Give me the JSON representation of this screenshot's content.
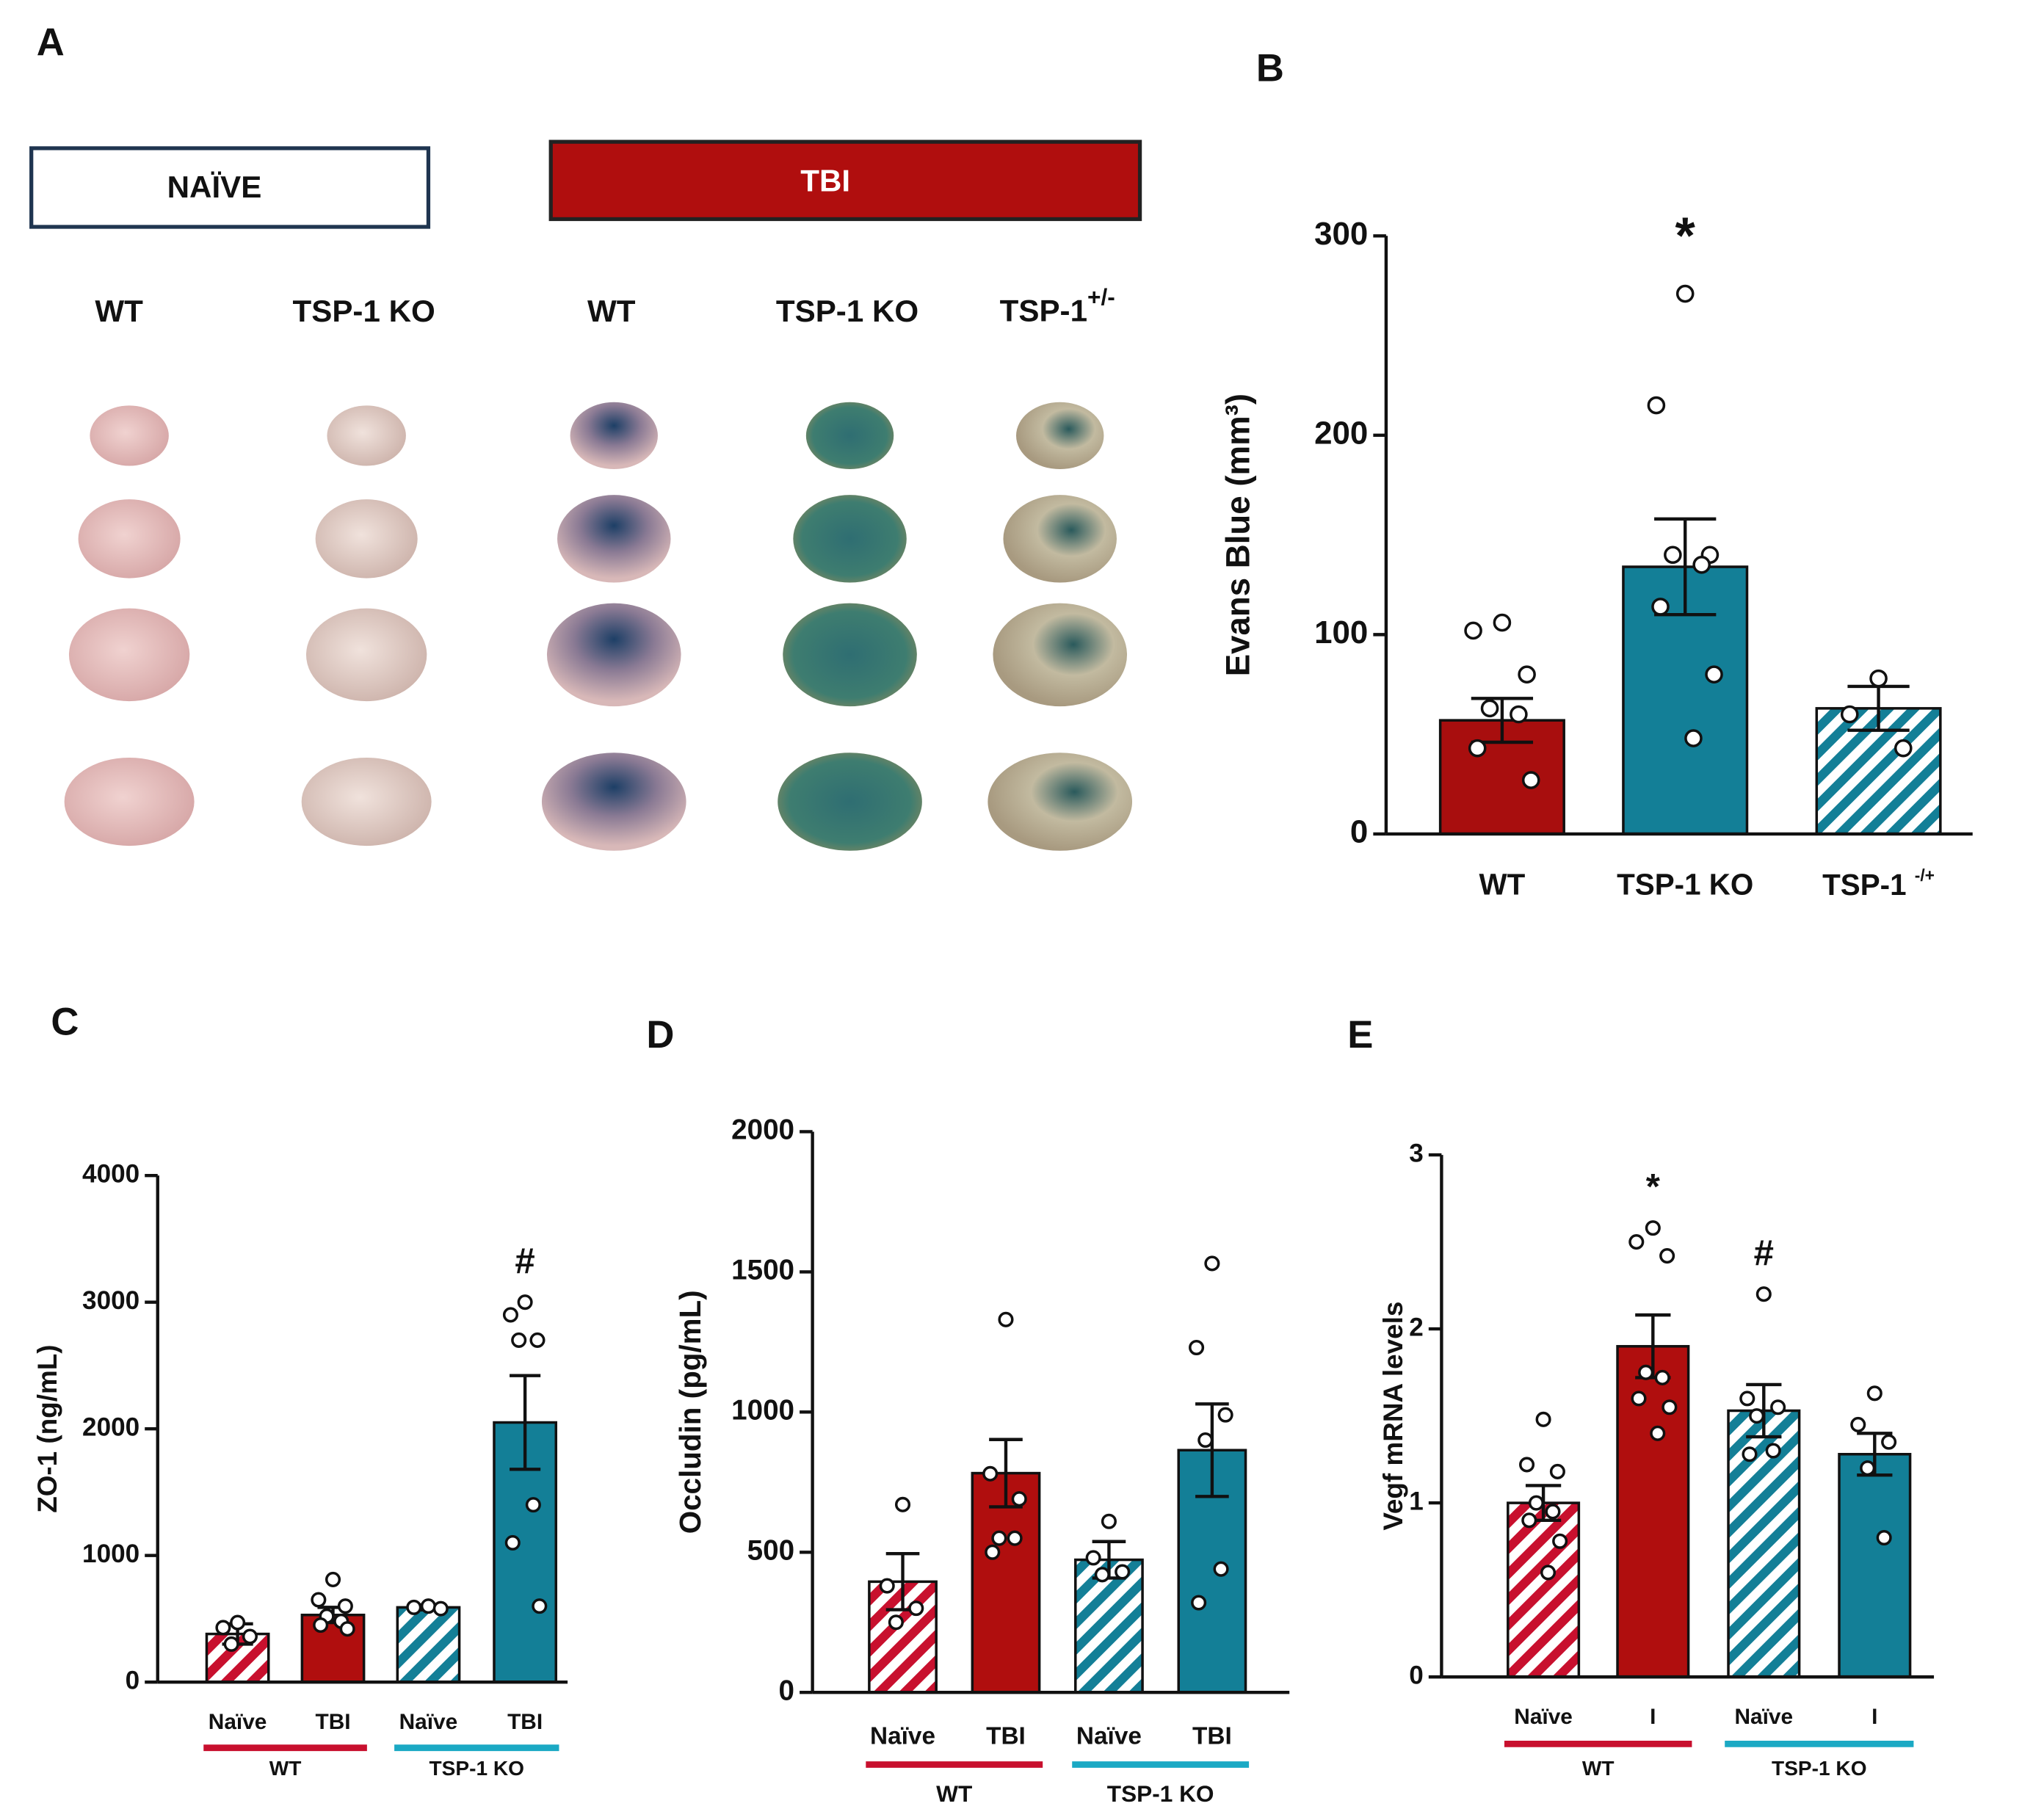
{
  "panel_a": {
    "panel": "A",
    "conditions": [
      "NAÏVE",
      "TBI"
    ],
    "columns": [
      "WT",
      "TSP-1 KO",
      "WT",
      "TSP-1 KO",
      {
        "text": "TSP-1",
        "sup": "+/-"
      }
    ]
  },
  "chart_data": [
    {
      "type": "bar",
      "panel": "B",
      "ylabel": "Evans Blue (mm³)",
      "categories": [
        "WT",
        "TSP-1 KO",
        {
          "text": "TSP-1 ",
          "sup": "-/+"
        }
      ],
      "values": [
        57,
        134,
        63
      ],
      "errors": [
        11,
        24,
        11
      ],
      "colors": [
        "#a80e0e",
        "#137f97",
        "#137f97"
      ],
      "hatched": [
        false,
        false,
        true
      ],
      "points": [
        [
          106,
          102,
          80,
          63,
          60,
          43,
          27
        ],
        [
          271,
          215,
          140,
          140,
          135,
          114,
          80,
          48
        ],
        [
          78,
          60,
          43
        ]
      ],
      "annotations": [
        null,
        "*",
        null
      ],
      "ylim": [
        0,
        300
      ],
      "yticks": [
        0,
        100,
        200,
        300
      ]
    },
    {
      "type": "bar",
      "panel": "C",
      "ylabel": "ZO-1 (ng/mL)",
      "categories": [
        "Naïve",
        "TBI",
        "Naïve",
        "TBI"
      ],
      "groups": [
        {
          "name": "WT",
          "color": "#c8102e"
        },
        {
          "name": "TSP-1 KO",
          "color": "#1ba9c4"
        }
      ],
      "values": [
        380,
        530,
        590,
        2050
      ],
      "errors": [
        80,
        60,
        20,
        370
      ],
      "colors": [
        "#c8102e",
        "#b00e0e",
        "#137f97",
        "#137f97"
      ],
      "hatched": [
        true,
        false,
        true,
        false
      ],
      "points": [
        [
          470,
          430,
          360,
          300
        ],
        [
          810,
          650,
          600,
          520,
          480,
          450,
          420
        ],
        [
          600,
          590,
          580
        ],
        [
          3000,
          2900,
          2700,
          2700,
          1400,
          1100,
          600
        ]
      ],
      "annotations": [
        null,
        null,
        null,
        "#"
      ],
      "ylim": [
        0,
        4000
      ],
      "yticks": [
        0,
        1000,
        2000,
        3000,
        4000
      ]
    },
    {
      "type": "bar",
      "panel": "D",
      "ylabel": "Occludin (pg/mL)",
      "categories": [
        "Naïve",
        "TBI",
        "Naïve",
        "TBI"
      ],
      "groups": [
        {
          "name": "WT",
          "color": "#c8102e"
        },
        {
          "name": "TSP-1 KO",
          "color": "#1ba9c4"
        }
      ],
      "values": [
        395,
        782,
        473,
        864
      ],
      "errors": [
        100,
        120,
        65,
        165
      ],
      "colors": [
        "#c8102e",
        "#b00e0e",
        "#137f97",
        "#137f97"
      ],
      "hatched": [
        true,
        false,
        true,
        false
      ],
      "points": [
        [
          670,
          380,
          300,
          250
        ],
        [
          1330,
          780,
          690,
          550,
          550,
          500
        ],
        [
          610,
          480,
          430,
          420
        ],
        [
          1530,
          1230,
          990,
          900,
          440,
          320
        ]
      ],
      "ylim": [
        0,
        2000
      ],
      "yticks": [
        0,
        500,
        1000,
        1500,
        2000
      ]
    },
    {
      "type": "bar",
      "panel": "E",
      "ylabel": "Vegf mRNA levels",
      "categories": [
        "Naïve",
        "I",
        "Naïve",
        "I"
      ],
      "groups": [
        {
          "name": "WT",
          "color": "#c8102e"
        },
        {
          "name": "TSP-1 KO",
          "color": "#1ba9c4"
        }
      ],
      "values": [
        1.0,
        1.9,
        1.53,
        1.28
      ],
      "errors": [
        0.1,
        0.18,
        0.15,
        0.12
      ],
      "colors": [
        "#c8102e",
        "#b00e0e",
        "#137f97",
        "#137f97"
      ],
      "hatched": [
        true,
        false,
        true,
        false
      ],
      "points": [
        [
          1.48,
          1.22,
          1.18,
          1.0,
          0.95,
          0.9,
          0.78,
          0.6
        ],
        [
          2.58,
          2.5,
          2.42,
          1.75,
          1.72,
          1.6,
          1.55,
          1.4
        ],
        [
          2.2,
          1.6,
          1.55,
          1.5,
          1.3,
          1.28
        ],
        [
          1.63,
          1.45,
          1.35,
          1.2,
          0.8
        ]
      ],
      "annotations": [
        null,
        "*",
        "#",
        null
      ],
      "ylim": [
        0,
        3
      ],
      "yticks": [
        0,
        1,
        2,
        3
      ]
    }
  ]
}
